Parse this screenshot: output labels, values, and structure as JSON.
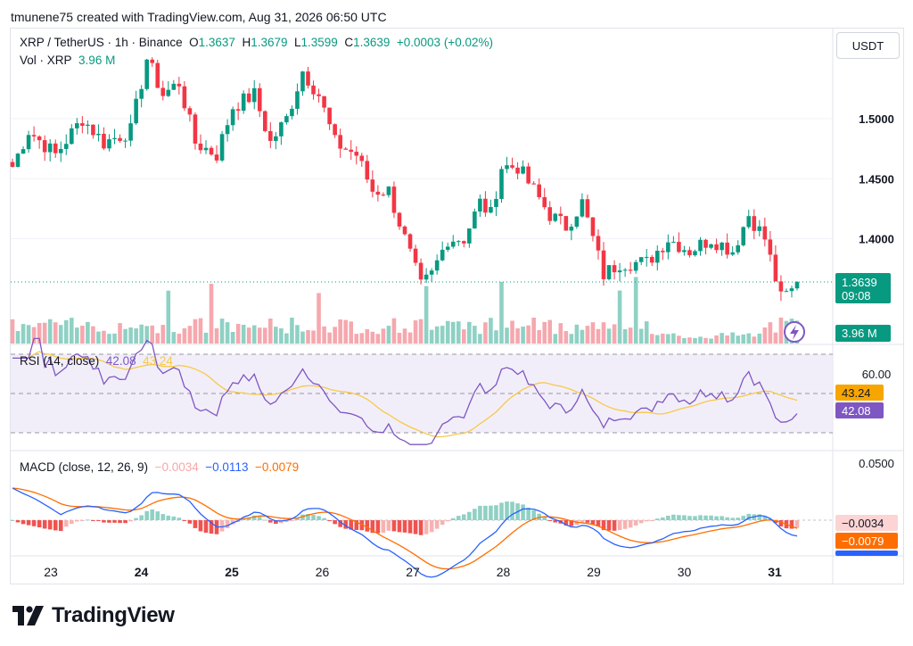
{
  "caption": "tmunene75 created with TradingView.com, Aug 31, 2026 06:50 UTC",
  "symbol": {
    "name": "XRP / TetherUS · 1h · Binance",
    "o_label": "O",
    "o": "1.3637",
    "h_label": "H",
    "h": "1.3679",
    "l_label": "L",
    "l": "1.3599",
    "c_label": "C",
    "c": "1.3639",
    "change": "+0.0003 (+0.02%)"
  },
  "volume_legend": {
    "label": "Vol · XRP",
    "value": "3.96 M"
  },
  "unit_button": "USDT",
  "price_axis": {
    "ticks": [
      1.5,
      1.45,
      1.4
    ],
    "tick_labels": [
      "1.5000",
      "1.4500",
      "1.4000"
    ],
    "last_price": "1.3639",
    "countdown": "09:08",
    "volume_badge": "3.96 M"
  },
  "rsi": {
    "title": "RSI (14, close)",
    "rsi_value": "42.08",
    "ma_value": "43.24",
    "upper_band": 70,
    "middle": 50,
    "lower_band": 30,
    "tick_label": "60.00",
    "colors": {
      "rsi": "#7e57c2",
      "ma": "#f7c948"
    }
  },
  "macd": {
    "title": "MACD (close, 12, 26, 9)",
    "hist_value": "−0.0034",
    "macd_value": "−0.0113",
    "signal_value": "−0.0079",
    "tick_label": "0.0500",
    "badge_hist": "−0.0034",
    "badge_signal": "−0.0079",
    "badge_macd": "−0.0113",
    "colors": {
      "macd": "#2962ff",
      "signal": "#ff6d00",
      "hist_pos": "#26a69a",
      "hist_neg": "#ef5350"
    }
  },
  "time_axis": {
    "labels": [
      "23",
      "24",
      "25",
      "26",
      "27",
      "28",
      "29",
      "30",
      "31"
    ],
    "bold": [
      "24",
      "25",
      "31"
    ]
  },
  "brand": {
    "name": "TradingView"
  },
  "colors": {
    "up": "#089981",
    "down": "#f23645",
    "accent": "#7e57c2"
  },
  "chart_data": {
    "type": "line",
    "symbol": "XRP / TetherUS",
    "interval": "1h",
    "ylim": [
      1.33,
      1.57
    ],
    "price_path": [
      [
        0,
        1.46
      ],
      [
        3,
        1.49
      ],
      [
        8,
        1.47
      ],
      [
        13,
        1.5
      ],
      [
        17,
        1.48
      ],
      [
        22,
        1.49
      ],
      [
        25,
        1.55
      ],
      [
        28,
        1.52
      ],
      [
        31,
        1.53
      ],
      [
        34,
        1.48
      ],
      [
        38,
        1.47
      ],
      [
        41,
        1.51
      ],
      [
        45,
        1.52
      ],
      [
        48,
        1.48
      ],
      [
        51,
        1.5
      ],
      [
        54,
        1.54
      ],
      [
        57,
        1.52
      ],
      [
        60,
        1.48
      ],
      [
        64,
        1.47
      ],
      [
        67,
        1.44
      ],
      [
        70,
        1.44
      ],
      [
        73,
        1.4
      ],
      [
        76,
        1.36
      ],
      [
        78,
        1.37
      ],
      [
        81,
        1.4
      ],
      [
        84,
        1.4
      ],
      [
        87,
        1.43
      ],
      [
        89,
        1.42
      ],
      [
        91,
        1.46
      ],
      [
        94,
        1.46
      ],
      [
        97,
        1.44
      ],
      [
        100,
        1.42
      ],
      [
        103,
        1.41
      ],
      [
        106,
        1.43
      ],
      [
        108,
        1.4
      ],
      [
        110,
        1.37
      ],
      [
        113,
        1.38
      ],
      [
        118,
        1.38
      ],
      [
        122,
        1.4
      ],
      [
        126,
        1.39
      ],
      [
        130,
        1.4
      ],
      [
        134,
        1.39
      ],
      [
        137,
        1.42
      ],
      [
        140,
        1.4
      ],
      [
        143,
        1.35
      ],
      [
        146,
        1.36
      ]
    ]
  }
}
